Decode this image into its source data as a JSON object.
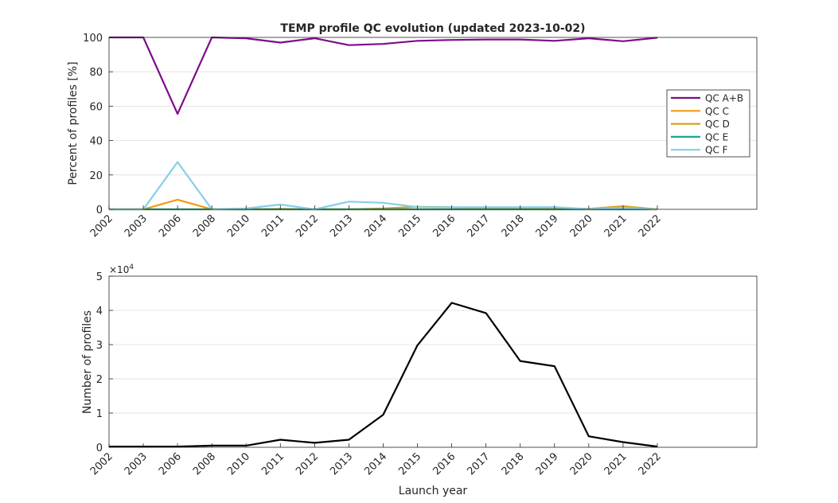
{
  "chart_data": [
    {
      "type": "line",
      "title": "TEMP profile QC evolution (updated 2023-10-02)",
      "xlabel": "",
      "ylabel": "Percent of profiles [%]",
      "categories": [
        "2002",
        "2003",
        "2006",
        "2008",
        "2010",
        "2011",
        "2012",
        "2013",
        "2014",
        "2015",
        "2016",
        "2017",
        "2018",
        "2019",
        "2020",
        "2021",
        "2022"
      ],
      "ylim": [
        0,
        100
      ],
      "yticks": [
        0,
        20,
        40,
        60,
        80,
        100
      ],
      "grid": "horizontal",
      "legend_position": "right",
      "series": [
        {
          "name": "QC A+B",
          "color": "#7e0c8a",
          "values": [
            100,
            100,
            55.5,
            100,
            99.5,
            97,
            99.5,
            95.5,
            96.2,
            98,
            98.5,
            98.8,
            98.8,
            98,
            99.5,
            97.8,
            99.8
          ]
        },
        {
          "name": "QC C",
          "color": "#f09b0f",
          "values": [
            0,
            0,
            5.6,
            0,
            0,
            0,
            0,
            0,
            0,
            0,
            0,
            0,
            0,
            0,
            0,
            0,
            0
          ]
        },
        {
          "name": "QC D",
          "color": "#d4a21c",
          "values": [
            0,
            0,
            0,
            0,
            0,
            0.3,
            0,
            0,
            0.5,
            1.5,
            1.2,
            0.3,
            0.2,
            0.3,
            0.3,
            1.8,
            0
          ]
        },
        {
          "name": "QC E",
          "color": "#1aa88f",
          "values": [
            0,
            0,
            0,
            0,
            0,
            0,
            0,
            0,
            0,
            0,
            0,
            0,
            0,
            0,
            0,
            0,
            0
          ]
        },
        {
          "name": "QC F",
          "color": "#86cfe6",
          "values": [
            0,
            0,
            27.5,
            0,
            0.5,
            2.8,
            0,
            4.5,
            3.8,
            1.3,
            1.2,
            1.2,
            1.2,
            1.3,
            0.2,
            0.8,
            0
          ]
        }
      ]
    },
    {
      "type": "line",
      "title": "",
      "xlabel": "Launch year",
      "ylabel": "Number of profiles",
      "y_exponent_label": "×10",
      "y_exponent_power": "4",
      "categories": [
        "2002",
        "2003",
        "2006",
        "2008",
        "2010",
        "2011",
        "2012",
        "2013",
        "2014",
        "2015",
        "2016",
        "2017",
        "2018",
        "2019",
        "2020",
        "2021",
        "2022"
      ],
      "ylim": [
        0,
        5
      ],
      "yticks": [
        0,
        1,
        2,
        3,
        4,
        5
      ],
      "grid": "horizontal",
      "series": [
        {
          "color": "#000000",
          "values": [
            0.02,
            0.02,
            0.02,
            0.05,
            0.05,
            0.22,
            0.13,
            0.22,
            0.95,
            2.98,
            4.22,
            3.92,
            2.52,
            2.37,
            0.32,
            0.15,
            0.02
          ]
        }
      ]
    }
  ]
}
